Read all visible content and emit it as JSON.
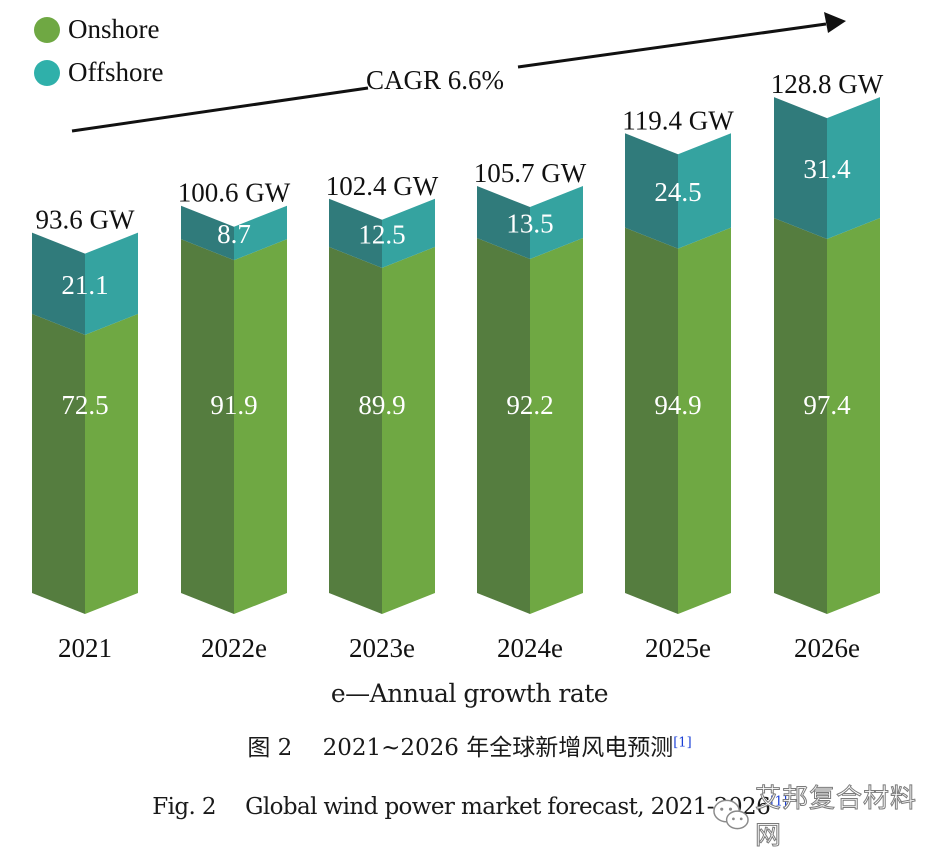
{
  "legend": {
    "items": [
      {
        "label": "Onshore",
        "color": "#6fa843"
      },
      {
        "label": "Offshore",
        "color": "#2fb0aa"
      }
    ]
  },
  "colors": {
    "onshore_dark": "#557d3f",
    "onshore_light": "#6fa843",
    "offshore_dark": "#307b7b",
    "offshore_light": "#35a3a0",
    "label_white": "#ffffff",
    "arrow": "#111111"
  },
  "chart_data": {
    "type": "bar",
    "stacked": true,
    "style": "3d-chevron",
    "title": "",
    "xlabel": "",
    "ylabel": "",
    "categories": [
      "2021",
      "2022e",
      "2023e",
      "2024e",
      "2025e",
      "2026e"
    ],
    "series": [
      {
        "name": "Onshore",
        "values": [
          72.5,
          91.9,
          89.9,
          92.2,
          94.9,
          97.4
        ]
      },
      {
        "name": "Offshore",
        "values": [
          21.1,
          8.7,
          12.5,
          13.5,
          24.5,
          31.4
        ]
      }
    ],
    "series_labels": {
      "Onshore": [
        "72.5",
        "91.9",
        "89.9",
        "92.2",
        "94.9",
        "97.4"
      ],
      "Offshore": [
        "21.1",
        "8.7",
        "12.5",
        "13.5",
        "24.5",
        "31.4"
      ]
    },
    "totals": [
      93.6,
      100.6,
      102.4,
      105.7,
      119.4,
      128.8
    ],
    "total_labels": [
      "93.6 GW",
      "100.6 GW",
      "102.4 GW",
      "105.7 GW",
      "119.4 GW",
      "128.8 GW"
    ],
    "annotation": "CAGR 6.6%",
    "legend_position": "top-left",
    "grid": false
  },
  "note": "e—Annual growth rate",
  "caption_cn": {
    "text": "图 2　 2021~2026 年全球新增风电预测",
    "ref": "[1]"
  },
  "caption_en": {
    "text": "Fig. 2　 Global wind power market forecast, 2021-2026",
    "ref": "[1]"
  },
  "watermark": {
    "text": "艾邦复合材料网"
  }
}
